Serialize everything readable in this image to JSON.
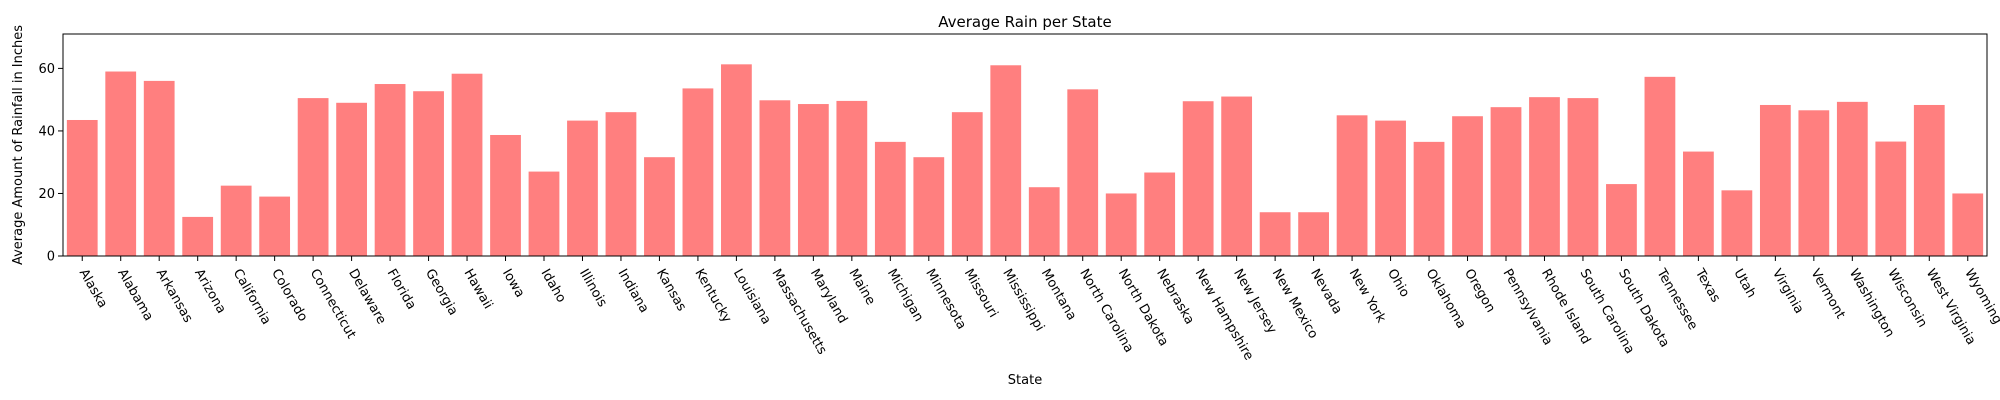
{
  "chart_data": {
    "type": "bar",
    "title": "Average Rain per State",
    "xlabel": "State",
    "ylabel": "Average Amount of Rainfall in Inches",
    "ylim": [
      0,
      71
    ],
    "yticks": [
      0,
      20,
      40,
      60
    ],
    "bar_color": "#ff7f7f",
    "categories": [
      "Alaska",
      "Alabama",
      "Arkansas",
      "Arizona",
      "California",
      "Colorado",
      "Connecticut",
      "Delaware",
      "Florida",
      "Georgia",
      "Hawaii",
      "Iowa",
      "Idaho",
      "Illinois",
      "Indiana",
      "Kansas",
      "Kentucky",
      "Louisiana",
      "Massachusetts",
      "Maryland",
      "Maine",
      "Michigan",
      "Minnesota",
      "Missouri",
      "Mississippi",
      "Montana",
      "North Carolina",
      "North Dakota",
      "Nebraska",
      "New Hampshire",
      "New Jersey",
      "New Mexico",
      "Nevada",
      "New York",
      "Ohio",
      "Oklahoma",
      "Oregon",
      "Pennsylvania",
      "Rhode Island",
      "South Carolina",
      "South Dakota",
      "Tennessee",
      "Texas",
      "Utah",
      "Virginia",
      "Vermont",
      "Washington",
      "Wisconsin",
      "West Virginia",
      "Wyoming"
    ],
    "values": [
      43.5,
      59,
      56,
      12.5,
      22.5,
      19,
      50.5,
      49,
      55,
      52.7,
      58.3,
      38.7,
      27,
      43.3,
      46,
      31.6,
      53.6,
      61.3,
      49.8,
      48.6,
      49.6,
      36.5,
      31.6,
      46,
      61,
      22,
      53.3,
      20,
      26.7,
      49.5,
      51,
      14,
      14,
      45,
      43.3,
      36.5,
      44.7,
      47.6,
      50.8,
      50.5,
      23,
      57.3,
      33.4,
      21,
      48.3,
      46.6,
      49.3,
      36.6,
      48.3,
      20
    ]
  }
}
